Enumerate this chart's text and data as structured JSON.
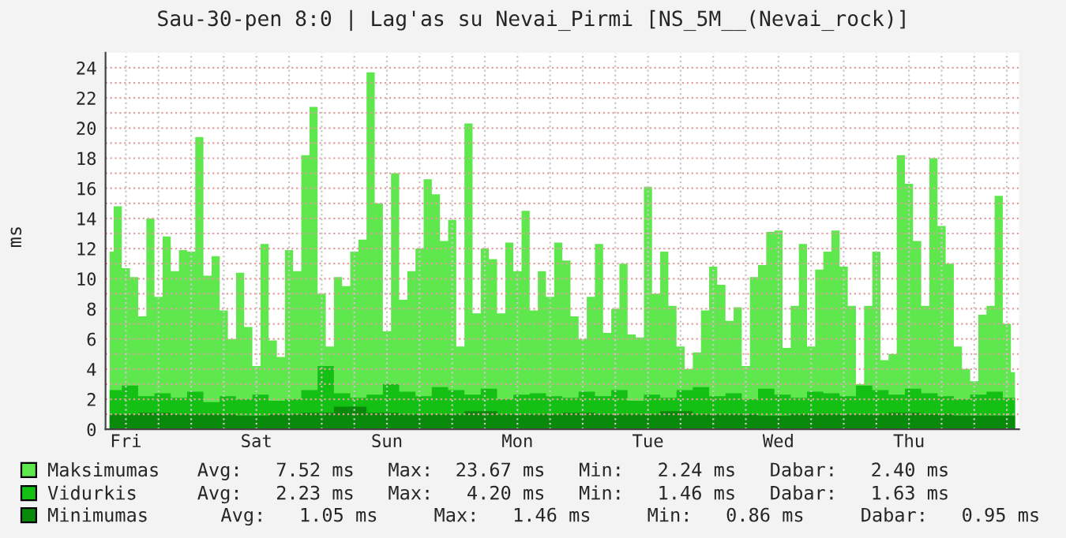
{
  "chart_data": {
    "type": "area",
    "title": "Sau-30-pen 8:0 | Lag'as su Nevai_Pirmi [NS_5M__(Nevai_rock)]",
    "ylabel": "ms",
    "categories": [
      null,
      null,
      "Fri",
      null,
      null,
      null,
      null,
      null,
      null,
      null,
      null,
      null,
      null,
      null,
      null,
      null,
      null,
      null,
      "Sat",
      null,
      null,
      null,
      null,
      null,
      null,
      null,
      null,
      null,
      null,
      null,
      null,
      null,
      null,
      null,
      "Sun",
      null,
      null,
      null,
      null,
      null,
      null,
      null,
      null,
      null,
      null,
      null,
      null,
      null,
      null,
      null,
      "Mon",
      null,
      null,
      null,
      null,
      null,
      null,
      null,
      null,
      null,
      null,
      null,
      null,
      null,
      null,
      null,
      "Tue",
      null,
      null,
      null,
      null,
      null,
      null,
      null,
      null,
      null,
      null,
      null,
      null,
      null,
      null,
      null,
      "Wed",
      null,
      null,
      null,
      null,
      null,
      null,
      null,
      null,
      null,
      null,
      null,
      null,
      null,
      null,
      null,
      "Thu",
      null,
      null,
      null,
      null,
      null,
      null,
      null,
      null,
      null,
      null,
      null,
      null,
      null
    ],
    "ylim": [
      0,
      25
    ],
    "yticks": [
      0,
      {
        "value": 1,
        "label": null
      },
      2,
      {
        "value": 3,
        "label": null
      },
      4,
      {
        "value": 5,
        "label": null
      },
      6,
      {
        "value": 7,
        "label": null
      },
      8,
      {
        "value": 9,
        "label": null
      },
      10,
      {
        "value": 11,
        "label": null
      },
      12,
      {
        "value": 13,
        "label": null
      },
      14,
      {
        "value": 15,
        "label": null
      },
      16,
      {
        "value": 17,
        "label": null
      },
      18,
      {
        "value": 19,
        "label": null
      },
      20,
      {
        "value": 21,
        "label": null
      },
      22,
      {
        "value": 23,
        "label": null
      },
      24
    ],
    "grid": true,
    "legend": "bottom",
    "series": [
      {
        "name": "Maksimumas",
        "color": "#5ee84e",
        "values": [
          11.8,
          14.8,
          10.7,
          10.1,
          7.5,
          14.0,
          8.8,
          12.8,
          10.5,
          11.9,
          11.8,
          19.4,
          10.2,
          11.5,
          7.9,
          6.0,
          10.4,
          6.8,
          4.2,
          12.3,
          5.9,
          4.8,
          11.9,
          10.5,
          18.2,
          21.4,
          9.0,
          5.5,
          10.1,
          9.5,
          11.8,
          12.6,
          23.7,
          15.0,
          6.5,
          17.0,
          8.6,
          10.5,
          12.0,
          16.6,
          15.6,
          12.5,
          13.9,
          5.5,
          20.3,
          7.7,
          12.0,
          11.3,
          7.7,
          12.4,
          10.5,
          14.5,
          7.9,
          10.5,
          8.8,
          12.4,
          11.2,
          7.5,
          6.0,
          8.8,
          12.3,
          6.4,
          8.0,
          11.0,
          6.3,
          6.1,
          16.1,
          9.0,
          11.8,
          8.2,
          5.5,
          4.0,
          5.1,
          7.9,
          10.8,
          9.6,
          7.2,
          8.1,
          4.2,
          10.1,
          10.9,
          13.1,
          13.2,
          5.4,
          8.2,
          12.3,
          5.5,
          10.6,
          11.8,
          13.2,
          10.8,
          8.2,
          3.0,
          8.2,
          11.8,
          4.6,
          5.0,
          18.2,
          16.3,
          12.5,
          8.2,
          18.0,
          13.5,
          11.0,
          5.5,
          4.0,
          3.2,
          7.6,
          8.2,
          15.5,
          7.0,
          3.8
        ]
      },
      {
        "name": "Vidurkis",
        "color": "#14c014",
        "values": [
          2.6,
          2.6,
          2.9,
          2.9,
          2.2,
          2.2,
          2.4,
          2.4,
          2.1,
          2.1,
          2.5,
          2.5,
          1.8,
          1.8,
          2.2,
          2.2,
          2.0,
          2.0,
          2.3,
          2.3,
          1.9,
          1.9,
          2.0,
          2.0,
          2.6,
          2.6,
          4.2,
          4.2,
          2.4,
          2.4,
          2.1,
          2.1,
          2.3,
          2.3,
          3.0,
          3.0,
          2.5,
          2.5,
          2.2,
          2.2,
          2.8,
          2.8,
          2.6,
          2.6,
          2.3,
          2.3,
          2.7,
          2.7,
          2.0,
          2.0,
          2.3,
          2.3,
          2.4,
          2.4,
          2.2,
          2.2,
          2.1,
          2.1,
          2.5,
          2.5,
          2.2,
          2.2,
          2.6,
          2.6,
          1.9,
          1.9,
          2.3,
          2.3,
          2.1,
          2.1,
          2.6,
          2.6,
          2.8,
          2.8,
          2.2,
          2.2,
          2.4,
          2.4,
          2.0,
          2.0,
          2.7,
          2.7,
          2.3,
          2.3,
          2.1,
          2.1,
          2.5,
          2.5,
          2.4,
          2.4,
          2.2,
          2.2,
          2.9,
          2.9,
          2.6,
          2.6,
          2.3,
          2.3,
          2.7,
          2.7,
          2.4,
          2.4,
          2.2,
          2.2,
          2.0,
          2.0,
          2.3,
          2.3,
          2.5,
          2.5,
          2.1,
          2.1
        ]
      },
      {
        "name": "Minimumas",
        "color": "#0a8a0a",
        "values": [
          1.0,
          1.0,
          1.0,
          1.0,
          1.1,
          1.1,
          1.1,
          1.1,
          1.0,
          1.0,
          1.0,
          1.0,
          1.0,
          1.0,
          1.0,
          1.0,
          0.9,
          0.9,
          0.9,
          0.9,
          1.0,
          1.0,
          1.0,
          1.0,
          1.1,
          1.1,
          1.1,
          1.1,
          1.5,
          1.5,
          1.5,
          1.5,
          1.1,
          1.1,
          1.1,
          1.1,
          1.0,
          1.0,
          1.0,
          1.0,
          1.0,
          1.0,
          1.0,
          1.0,
          1.2,
          1.2,
          1.2,
          1.2,
          1.0,
          1.0,
          1.0,
          1.0,
          1.0,
          1.0,
          1.0,
          1.0,
          1.1,
          1.1,
          1.1,
          1.1,
          1.0,
          1.0,
          1.0,
          1.0,
          1.0,
          1.0,
          1.0,
          1.0,
          1.2,
          1.2,
          1.2,
          1.2,
          1.0,
          1.0,
          1.0,
          1.0,
          1.0,
          1.0,
          1.0,
          1.0,
          0.9,
          0.9,
          0.9,
          0.9,
          1.0,
          1.0,
          1.0,
          1.0,
          1.0,
          1.0,
          1.0,
          1.0,
          1.0,
          1.0,
          1.0,
          1.0,
          1.1,
          1.1,
          1.1,
          1.1,
          1.0,
          1.0,
          1.0,
          1.0,
          0.9,
          0.9,
          0.9,
          0.9,
          0.9,
          0.9,
          0.9,
          0.9
        ]
      }
    ],
    "annotations": [
      "Avg:   7.52 ms   Max:  23.67 ms   Min:   2.24 ms   Dabar:   2.40 ms",
      "Avg:   2.23 ms   Max:   4.20 ms   Min:   1.46 ms   Dabar:   1.63 ms",
      "Avg:   1.05 ms     Max:   1.46 ms     Min:   0.86 ms     Dabar:   0.95 ms"
    ]
  }
}
